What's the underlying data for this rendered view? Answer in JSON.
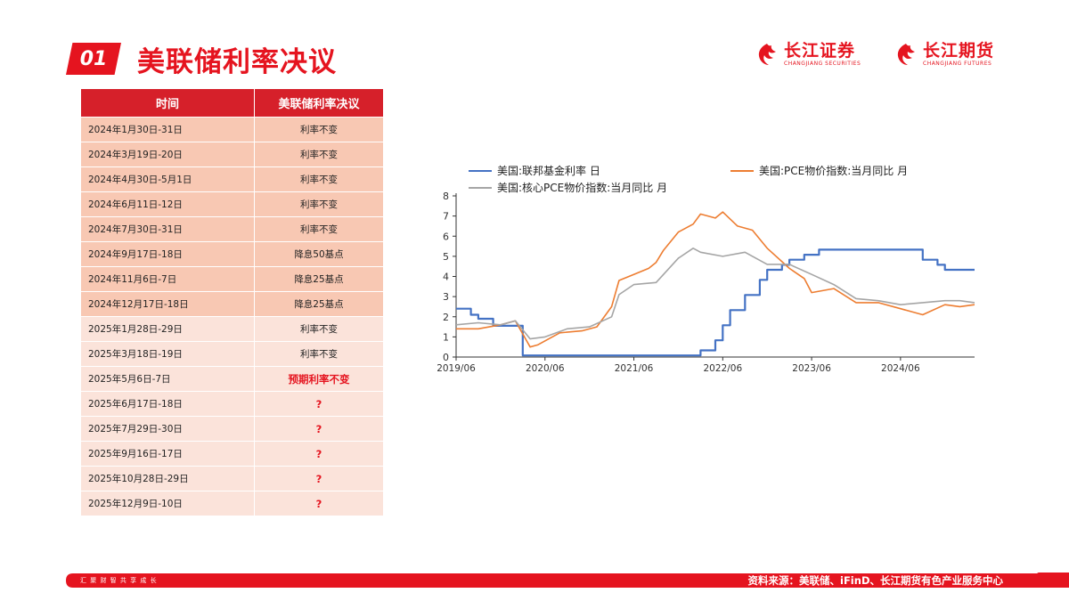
{
  "header": {
    "badge": "01",
    "title": "美联储利率决议"
  },
  "logos": [
    {
      "cn": "长江证券",
      "en": "CHANGJIANG SECURITIES"
    },
    {
      "cn": "长江期货",
      "en": "CHANGJIANG FUTURES"
    }
  ],
  "table": {
    "headers": [
      "时间",
      "美联储利率决议"
    ],
    "rows": [
      {
        "date": "2024年1月30日-31日",
        "decision": "利率不变",
        "year": "2024",
        "highlight": false
      },
      {
        "date": "2024年3月19日-20日",
        "decision": "利率不变",
        "year": "2024",
        "highlight": false
      },
      {
        "date": "2024年4月30日-5月1日",
        "decision": "利率不变",
        "year": "2024",
        "highlight": false
      },
      {
        "date": "2024年6月11日-12日",
        "decision": "利率不变",
        "year": "2024",
        "highlight": false
      },
      {
        "date": "2024年7月30日-31日",
        "decision": "利率不变",
        "year": "2024",
        "highlight": false
      },
      {
        "date": "2024年9月17日-18日",
        "decision": "降息50基点",
        "year": "2024",
        "highlight": false
      },
      {
        "date": "2024年11月6日-7日",
        "decision": "降息25基点",
        "year": "2024",
        "highlight": false
      },
      {
        "date": "2024年12月17日-18日",
        "decision": "降息25基点",
        "year": "2024",
        "highlight": false
      },
      {
        "date": "2025年1月28日-29日",
        "decision": "利率不变",
        "year": "2025",
        "highlight": false
      },
      {
        "date": "2025年3月18日-19日",
        "decision": "利率不变",
        "year": "2025",
        "highlight": false
      },
      {
        "date": "2025年5月6日-7日",
        "decision": "预期利率不变",
        "year": "2025",
        "highlight": true
      },
      {
        "date": "2025年6月17日-18日",
        "decision": "?",
        "year": "2025",
        "highlight": true
      },
      {
        "date": "2025年7月29日-30日",
        "decision": "?",
        "year": "2025",
        "highlight": true
      },
      {
        "date": "2025年9月16日-17日",
        "decision": "?",
        "year": "2025",
        "highlight": true
      },
      {
        "date": "2025年10月28日-29日",
        "decision": "?",
        "year": "2025",
        "highlight": true
      },
      {
        "date": "2025年12月9日-10日",
        "decision": "?",
        "year": "2025",
        "highlight": true
      }
    ]
  },
  "chart_data": {
    "type": "line",
    "title": "",
    "xlabel": "",
    "ylabel": "",
    "ylim": [
      0,
      8
    ],
    "xlim": [
      "2019-06",
      "2025-04"
    ],
    "yticks": [
      0,
      1,
      2,
      3,
      4,
      5,
      6,
      7,
      8
    ],
    "xticks": [
      {
        "label": "2019/06",
        "x": "2019-06"
      },
      {
        "label": "2020/06",
        "x": "2020-06"
      },
      {
        "label": "2021/06",
        "x": "2021-06"
      },
      {
        "label": "2022/06",
        "x": "2022-06"
      },
      {
        "label": "2023/06",
        "x": "2023-06"
      },
      {
        "label": "2024/06",
        "x": "2024-06"
      }
    ],
    "grid": false,
    "legend_position": "top",
    "series": [
      {
        "name": "美国:联邦基金利率 日",
        "color": "#4472c4",
        "step": true,
        "points": [
          [
            "2019-06",
            2.4
          ],
          [
            "2019-08",
            2.1
          ],
          [
            "2019-09",
            1.9
          ],
          [
            "2019-11",
            1.55
          ],
          [
            "2020-03",
            0.08
          ],
          [
            "2022-03",
            0.33
          ],
          [
            "2022-05",
            0.83
          ],
          [
            "2022-06",
            1.58
          ],
          [
            "2022-07",
            2.33
          ],
          [
            "2022-09",
            3.08
          ],
          [
            "2022-11",
            3.83
          ],
          [
            "2022-12",
            4.33
          ],
          [
            "2023-02",
            4.58
          ],
          [
            "2023-03",
            4.83
          ],
          [
            "2023-05",
            5.08
          ],
          [
            "2023-07",
            5.33
          ],
          [
            "2024-09",
            4.83
          ],
          [
            "2024-11",
            4.58
          ],
          [
            "2024-12",
            4.33
          ],
          [
            "2025-04",
            4.33
          ]
        ]
      },
      {
        "name": "美国:PCE物价指数:当月同比 月",
        "color": "#ed7d31",
        "step": false,
        "points": [
          [
            "2019-06",
            1.4
          ],
          [
            "2019-09",
            1.4
          ],
          [
            "2019-12",
            1.6
          ],
          [
            "2020-02",
            1.8
          ],
          [
            "2020-04",
            0.5
          ],
          [
            "2020-05",
            0.6
          ],
          [
            "2020-08",
            1.2
          ],
          [
            "2020-11",
            1.3
          ],
          [
            "2021-01",
            1.5
          ],
          [
            "2021-03",
            2.5
          ],
          [
            "2021-04",
            3.8
          ],
          [
            "2021-06",
            4.1
          ],
          [
            "2021-08",
            4.4
          ],
          [
            "2021-09",
            4.7
          ],
          [
            "2021-10",
            5.3
          ],
          [
            "2021-12",
            6.2
          ],
          [
            "2022-02",
            6.6
          ],
          [
            "2022-03",
            7.1
          ],
          [
            "2022-05",
            6.9
          ],
          [
            "2022-06",
            7.2
          ],
          [
            "2022-08",
            6.5
          ],
          [
            "2022-10",
            6.3
          ],
          [
            "2022-12",
            5.4
          ],
          [
            "2023-03",
            4.4
          ],
          [
            "2023-05",
            3.9
          ],
          [
            "2023-06",
            3.2
          ],
          [
            "2023-09",
            3.4
          ],
          [
            "2023-12",
            2.7
          ],
          [
            "2024-03",
            2.7
          ],
          [
            "2024-06",
            2.4
          ],
          [
            "2024-09",
            2.1
          ],
          [
            "2024-12",
            2.6
          ],
          [
            "2025-02",
            2.5
          ],
          [
            "2025-04",
            2.6
          ]
        ]
      },
      {
        "name": "美国:核心PCE物价指数:当月同比 月",
        "color": "#a5a5a5",
        "step": false,
        "points": [
          [
            "2019-06",
            1.6
          ],
          [
            "2019-09",
            1.7
          ],
          [
            "2019-12",
            1.6
          ],
          [
            "2020-02",
            1.8
          ],
          [
            "2020-04",
            0.9
          ],
          [
            "2020-06",
            1.0
          ],
          [
            "2020-09",
            1.4
          ],
          [
            "2020-12",
            1.5
          ],
          [
            "2021-03",
            2.0
          ],
          [
            "2021-04",
            3.1
          ],
          [
            "2021-06",
            3.6
          ],
          [
            "2021-09",
            3.7
          ],
          [
            "2021-12",
            4.9
          ],
          [
            "2022-02",
            5.4
          ],
          [
            "2022-03",
            5.2
          ],
          [
            "2022-06",
            5.0
          ],
          [
            "2022-09",
            5.2
          ],
          [
            "2022-12",
            4.6
          ],
          [
            "2023-03",
            4.6
          ],
          [
            "2023-06",
            4.1
          ],
          [
            "2023-09",
            3.6
          ],
          [
            "2023-12",
            2.9
          ],
          [
            "2024-03",
            2.8
          ],
          [
            "2024-06",
            2.6
          ],
          [
            "2024-09",
            2.7
          ],
          [
            "2024-12",
            2.8
          ],
          [
            "2025-02",
            2.8
          ],
          [
            "2025-04",
            2.7
          ]
        ]
      }
    ]
  },
  "footer": {
    "slogan": "汇 聚 财 智      共 享 成 长",
    "source": "资料来源：美联储、iFinD、长江期货有色产业服务中心"
  }
}
